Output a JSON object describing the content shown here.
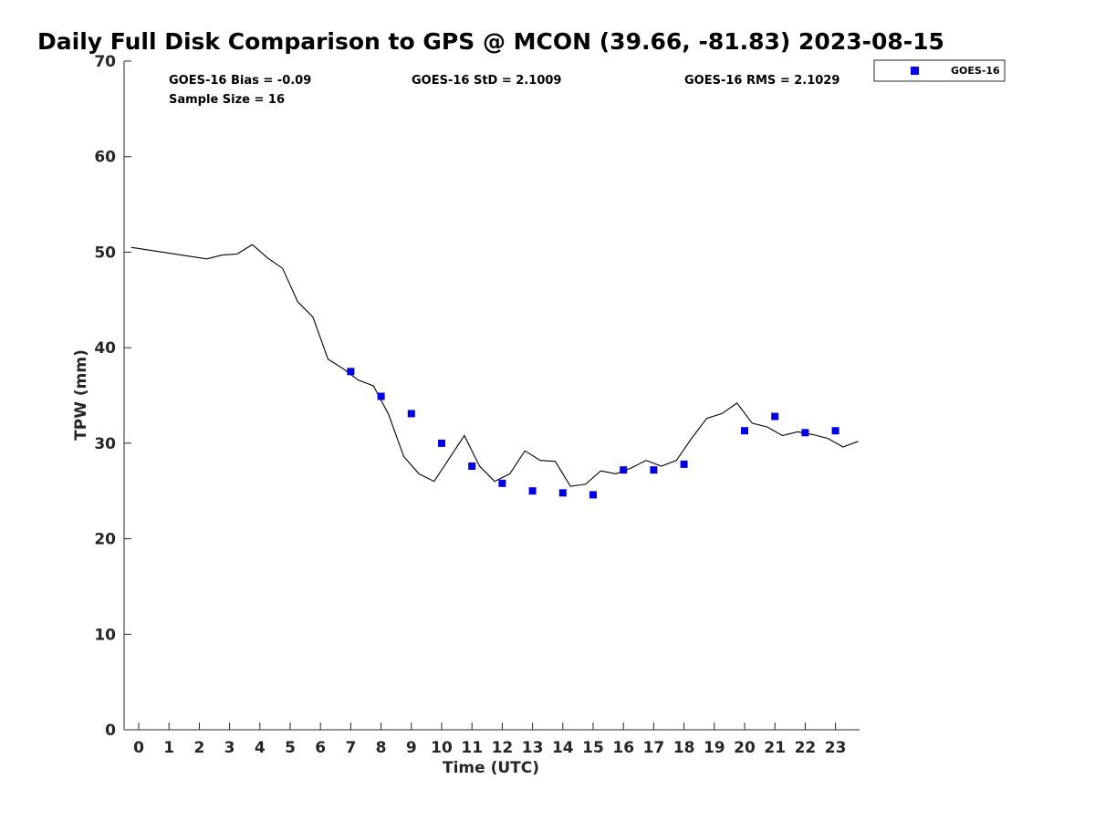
{
  "chart_data": {
    "type": "scatter",
    "title": "Daily Full Disk Comparison to GPS @ MCON (39.66, -81.83) 2023-08-15",
    "xlabel": "Time (UTC)",
    "ylabel": "TPW (mm)",
    "xlim": [
      -0.5,
      23.75
    ],
    "ylim": [
      0,
      70
    ],
    "x_ticks": [
      "0",
      "1",
      "2",
      "3",
      "4",
      "5",
      "6",
      "7",
      "8",
      "9",
      "10",
      "11",
      "12",
      "13",
      "14",
      "15",
      "16",
      "17",
      "18",
      "19",
      "20",
      "21",
      "22",
      "23"
    ],
    "y_ticks": [
      "0",
      "10",
      "20",
      "30",
      "40",
      "50",
      "60",
      "70"
    ],
    "grid": false,
    "legend_position": "top-right outside",
    "stats": {
      "bias": "GOES-16 Bias = -0.09",
      "sample_size": "Sample Size = 16",
      "std": "GOES-16 StD = 2.1009",
      "rms": "GOES-16 RMS = 2.1029"
    },
    "series": [
      {
        "kind": "line",
        "color": "#000000",
        "x": [
          -0.25,
          2.25,
          2.75,
          3.25,
          3.75,
          4.25,
          4.75,
          5.25,
          5.75,
          6.25,
          6.75,
          7.25,
          7.75,
          8.25,
          8.75,
          9.25,
          9.75,
          10.25,
          10.75,
          11.25,
          11.75,
          12.25,
          12.75,
          13.25,
          13.75,
          14.25,
          14.75,
          15.25,
          15.75,
          16.25,
          16.75,
          17.25,
          17.75,
          18.25,
          18.75,
          19.25,
          19.75,
          20.25,
          20.75,
          21.25,
          21.75,
          22.25,
          22.75,
          23.25,
          23.75
        ],
        "y": [
          50.5,
          49.3,
          49.7,
          49.8,
          50.8,
          49.4,
          48.3,
          44.8,
          43.2,
          38.8,
          37.8,
          36.6,
          36.0,
          33.0,
          28.6,
          26.8,
          26.0,
          28.4,
          30.8,
          27.6,
          26.0,
          26.8,
          29.2,
          28.2,
          28.1,
          25.5,
          25.7,
          27.1,
          26.8,
          27.4,
          28.2,
          27.6,
          28.2,
          30.5,
          32.6,
          33.1,
          34.2,
          32.1,
          31.7,
          30.8,
          31.2,
          30.9,
          30.5,
          29.6,
          30.2
        ]
      },
      {
        "name": "GOES-16",
        "kind": "scatter",
        "color": "#0000e0",
        "x": [
          7,
          8,
          9,
          10,
          11,
          12,
          13,
          14,
          15,
          16,
          17,
          18,
          20,
          21,
          22,
          23
        ],
        "y": [
          37.5,
          34.9,
          33.1,
          30.0,
          27.6,
          25.8,
          25.0,
          24.8,
          24.6,
          27.2,
          27.2,
          27.8,
          31.3,
          32.8,
          31.1,
          31.3
        ]
      }
    ]
  }
}
